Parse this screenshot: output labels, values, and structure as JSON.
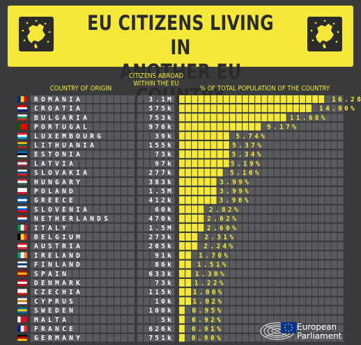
{
  "title_line1": "EU CITIZENS LIVING IN",
  "title_line2": "ANOTHER EU COUNTRY",
  "columns": {
    "country": "COUNTRY OF ORIGIN",
    "abroad_line1": "CITIZENS ABROAD",
    "abroad_line2": "WITHIN THE EU",
    "percent": "% OF TOTAL POPULATION OF THE COUNTRY"
  },
  "logo": {
    "line1": "European",
    "line2": "Parliament"
  },
  "colors": {
    "accent": "#f5e83a",
    "background": "#3a3b3d",
    "cell": "#5a5b5e"
  },
  "chart_data": {
    "type": "bar",
    "orientation": "horizontal",
    "categories": [
      "ROMANIA",
      "CROATIA",
      "BULGARIA",
      "PORTUGAL",
      "LUXEMBOURG",
      "LITHUANIA",
      "ESTONIA",
      "LATVIA",
      "SLOVAKIA",
      "HUNGARY",
      "POLAND",
      "GREECE",
      "SLOVENIA",
      "NETHERLANDS",
      "ITALY",
      "BELGIUM",
      "AUSTRIA",
      "IRELAND",
      "FINLAND",
      "SPAIN",
      "DENMARK",
      "CZECHIA",
      "CYPRUS",
      "SWEDEN",
      "MALTA",
      "FRANCE",
      "GERMANY"
    ],
    "citizens_abroad": [
      "3.1M",
      "575k",
      "753k",
      "976k",
      "39k",
      "155k",
      "73k",
      "97k",
      "277k",
      "383k",
      "1.5M",
      "412k",
      "60k",
      "470k",
      "1.5M",
      "273k",
      "205k",
      "91k",
      "86k",
      "633k",
      "73k",
      "115k",
      "10k",
      "100k",
      "5k",
      "626k",
      "751k"
    ],
    "values": [
      16.28,
      14.9,
      11.68,
      9.17,
      5.74,
      5.37,
      5.34,
      5.19,
      5.1,
      3.99,
      3.99,
      3.96,
      2.82,
      2.62,
      2.6,
      2.31,
      2.24,
      1.7,
      1.51,
      1.3,
      1.22,
      1.06,
      1.02,
      0.95,
      0.92,
      0.91,
      0.9
    ],
    "value_labels": [
      "16.28%",
      "14.90%",
      "11.68%",
      "9.17%",
      "5.74%",
      "5.37%",
      "5.34%",
      "5.19%",
      "5.10%",
      "3.99%",
      "3.99%",
      "3.96%",
      "2.82%",
      "2.62%",
      "2.60%",
      "2.31%",
      "2.24%",
      "1.70%",
      "1.51%",
      "1.30%",
      "1.22%",
      "1.06%",
      "1.02%",
      "0.95%",
      "0.92%",
      "0.91%",
      "0.90%"
    ],
    "flag_stripes": [
      [
        "v",
        "#002b7f",
        "#fcd116",
        "#ce1126"
      ],
      [
        "h",
        "#ff0000",
        "#ffffff",
        "#171796"
      ],
      [
        "h",
        "#ffffff",
        "#00966e",
        "#d62612"
      ],
      [
        "v",
        "#006600",
        "#ff0000",
        "#ff0000"
      ],
      [
        "h",
        "#ed2939",
        "#ffffff",
        "#00a1de"
      ],
      [
        "h",
        "#fdb913",
        "#006a44",
        "#c1272d"
      ],
      [
        "h",
        "#0072ce",
        "#000000",
        "#ffffff"
      ],
      [
        "h",
        "#9e3039",
        "#ffffff",
        "#9e3039"
      ],
      [
        "h",
        "#ffffff",
        "#0b4ea2",
        "#ee1c25"
      ],
      [
        "h",
        "#ce2939",
        "#ffffff",
        "#477050"
      ],
      [
        "h",
        "#ffffff",
        "#ffffff",
        "#dc143c"
      ],
      [
        "h",
        "#0d5eaf",
        "#ffffff",
        "#0d5eaf"
      ],
      [
        "h",
        "#ffffff",
        "#005ce5",
        "#ff0000"
      ],
      [
        "h",
        "#ae1c28",
        "#ffffff",
        "#21468b"
      ],
      [
        "v",
        "#009246",
        "#ffffff",
        "#ce2b37"
      ],
      [
        "v",
        "#000000",
        "#fdda24",
        "#ef3340"
      ],
      [
        "h",
        "#ed2939",
        "#ffffff",
        "#ed2939"
      ],
      [
        "v",
        "#169b62",
        "#ffffff",
        "#ff883e"
      ],
      [
        "h",
        "#ffffff",
        "#003580",
        "#ffffff"
      ],
      [
        "h",
        "#aa151b",
        "#f1bf00",
        "#aa151b"
      ],
      [
        "h",
        "#c8102e",
        "#ffffff",
        "#c8102e"
      ],
      [
        "h",
        "#ffffff",
        "#ffffff",
        "#d7141a"
      ],
      [
        "h",
        "#ffffff",
        "#d57800",
        "#ffffff"
      ],
      [
        "h",
        "#006aa7",
        "#fecc00",
        "#006aa7"
      ],
      [
        "v",
        "#ffffff",
        "#cf142b",
        "#cf142b"
      ],
      [
        "v",
        "#002395",
        "#ffffff",
        "#ed2939"
      ],
      [
        "h",
        "#000000",
        "#dd0000",
        "#ffce00"
      ]
    ]
  }
}
